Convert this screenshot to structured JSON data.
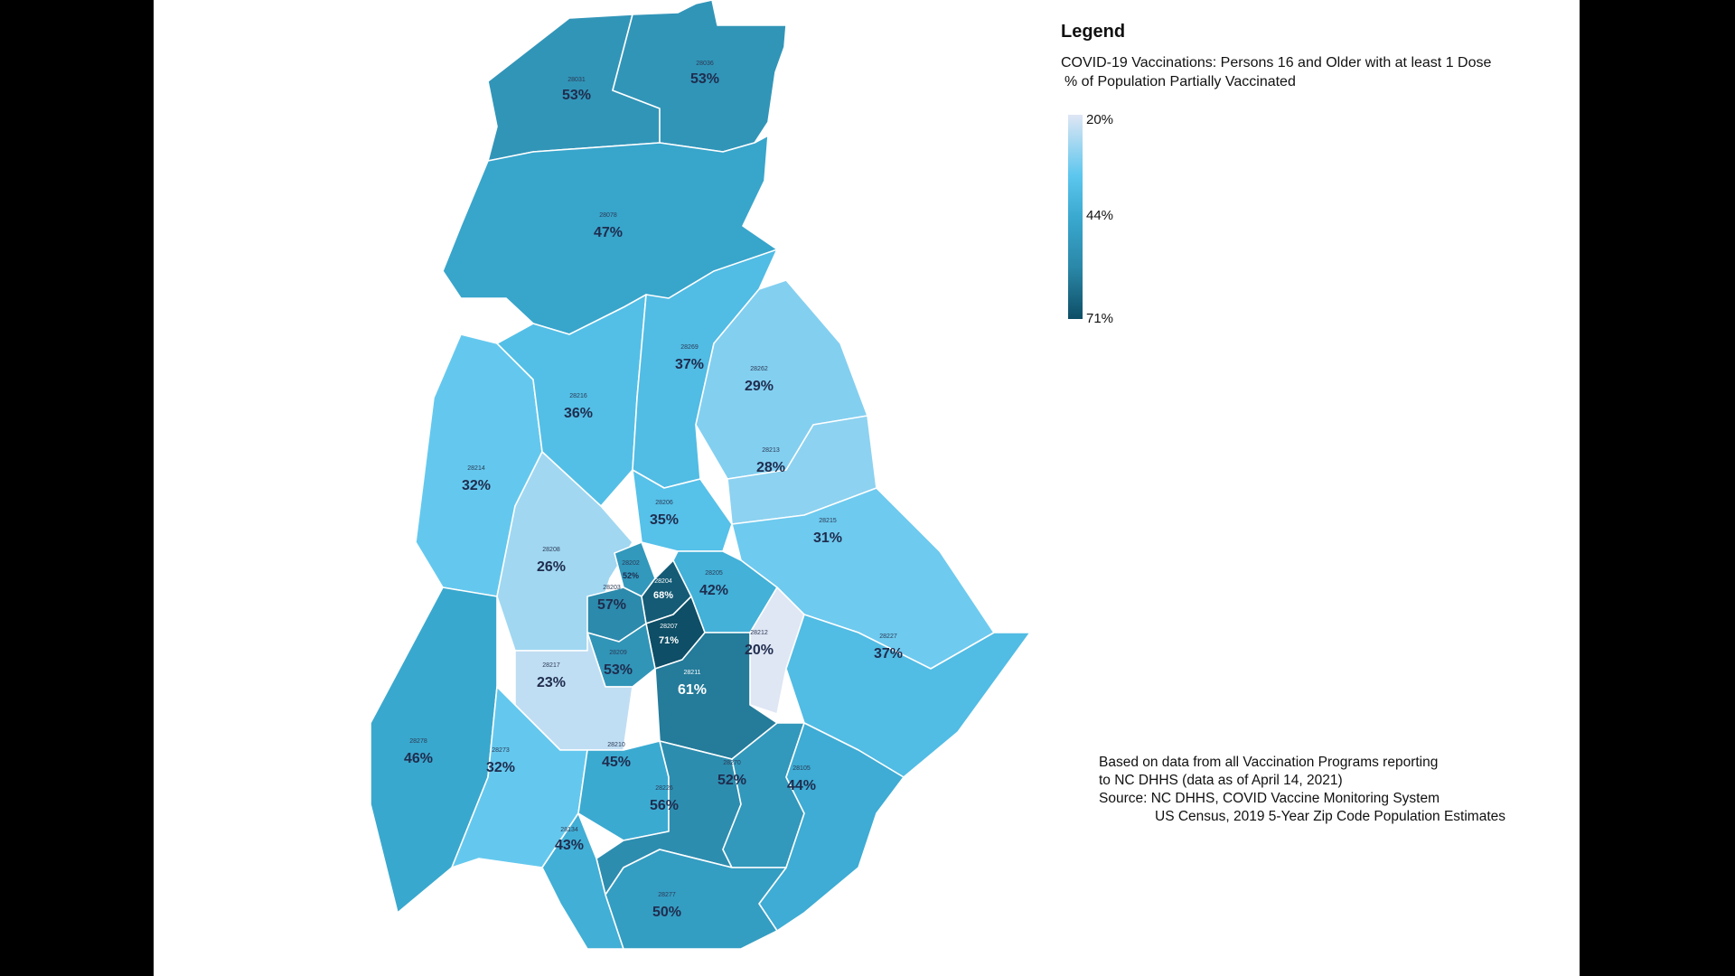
{
  "legend": {
    "heading": "Legend",
    "line1": "COVID-19 Vaccinations: Persons 16 and Older with at least 1 Dose",
    "line2": "% of Population Partially Vaccinated",
    "ticks": {
      "low": "20%",
      "mid": "44%",
      "high": "71%"
    },
    "scale_colors": [
      "#dfe6f4",
      "#5cc6ee",
      "#3aa9d0",
      "#2a87a8",
      "#0e4e66"
    ]
  },
  "notes": {
    "line1": "Based on data from all Vaccination Programs reporting",
    "line2": "to NC DHHS (data as of April 14, 2021)",
    "line3": "Source: NC DHHS, COVID Vaccine Monitoring System",
    "line4": "US Census, 2019 5-Year Zip Code Population Estimates"
  },
  "zones": [
    {
      "zip": "28031",
      "pct": "53%",
      "value": 53
    },
    {
      "zip": "28036",
      "pct": "53%",
      "value": 53
    },
    {
      "zip": "28078",
      "pct": "47%",
      "value": 47
    },
    {
      "zip": "28216",
      "pct": "36%",
      "value": 36
    },
    {
      "zip": "28269",
      "pct": "37%",
      "value": 37
    },
    {
      "zip": "28262",
      "pct": "29%",
      "value": 29
    },
    {
      "zip": "28213",
      "pct": "28%",
      "value": 28
    },
    {
      "zip": "28214",
      "pct": "32%",
      "value": 32
    },
    {
      "zip": "28206",
      "pct": "35%",
      "value": 35
    },
    {
      "zip": "28215",
      "pct": "31%",
      "value": 31
    },
    {
      "zip": "28208",
      "pct": "26%",
      "value": 26
    },
    {
      "zip": "28202",
      "pct": "52%",
      "value": 52
    },
    {
      "zip": "28204",
      "pct": "68%",
      "value": 68
    },
    {
      "zip": "28203",
      "pct": "57%",
      "value": 57
    },
    {
      "zip": "28205",
      "pct": "42%",
      "value": 42
    },
    {
      "zip": "28207",
      "pct": "71%",
      "value": 71
    },
    {
      "zip": "28212",
      "pct": "20%",
      "value": 20
    },
    {
      "zip": "28227",
      "pct": "37%",
      "value": 37
    },
    {
      "zip": "28209",
      "pct": "53%",
      "value": 53
    },
    {
      "zip": "28217",
      "pct": "23%",
      "value": 23
    },
    {
      "zip": "28211",
      "pct": "61%",
      "value": 61
    },
    {
      "zip": "28278",
      "pct": "46%",
      "value": 46
    },
    {
      "zip": "28273",
      "pct": "32%",
      "value": 32
    },
    {
      "zip": "28210",
      "pct": "45%",
      "value": 45
    },
    {
      "zip": "28226",
      "pct": "56%",
      "value": 56
    },
    {
      "zip": "28270",
      "pct": "52%",
      "value": 52
    },
    {
      "zip": "28105",
      "pct": "44%",
      "value": 44
    },
    {
      "zip": "28134",
      "pct": "43%",
      "value": 43
    },
    {
      "zip": "28277",
      "pct": "50%",
      "value": 50
    }
  ]
}
